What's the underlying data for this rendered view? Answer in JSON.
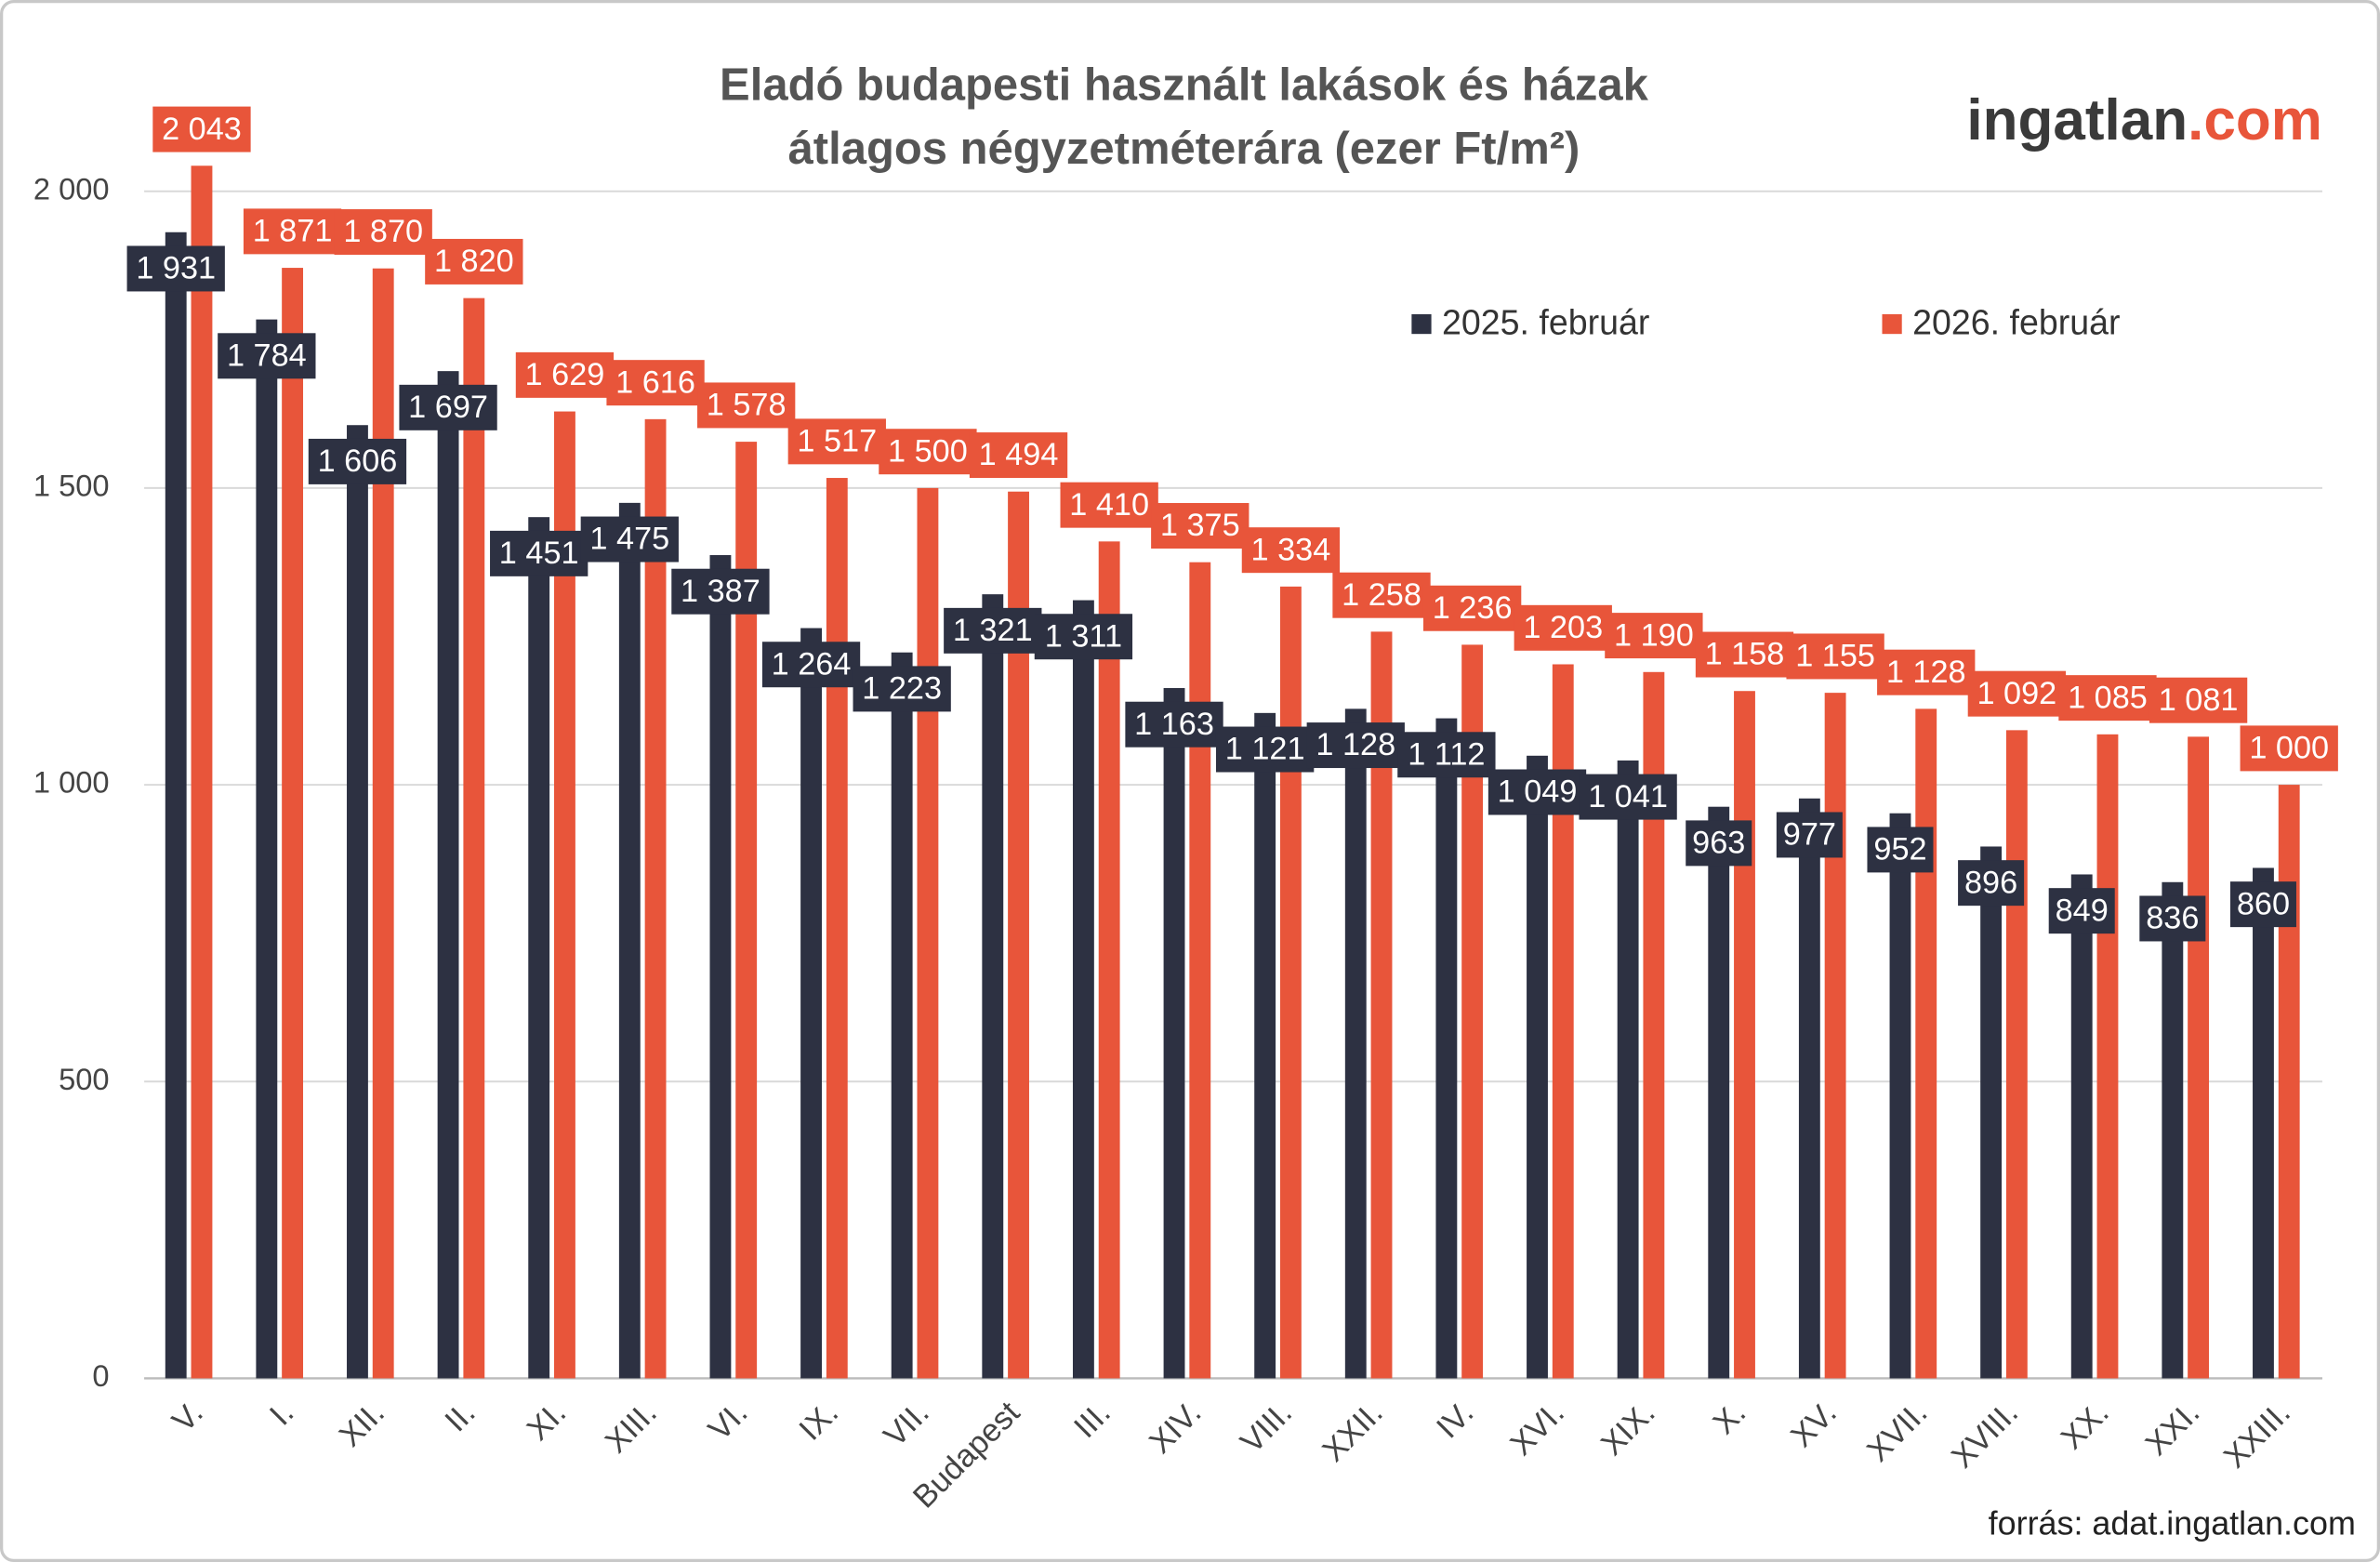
{
  "chart_data": {
    "type": "bar",
    "title": [
      "Eladó budapesti használt lakások és házak",
      "átlagos négyzetméterára (ezer Ft/m²)"
    ],
    "logo": [
      "ingatlan",
      ".com"
    ],
    "source": "forrás: adat.ingatlan.com",
    "categories": [
      "V.",
      "I.",
      "XII.",
      "II.",
      "XI.",
      "XIII.",
      "VI.",
      "IX.",
      "VII.",
      "Budapest",
      "III.",
      "XIV.",
      "VIII.",
      "XXII.",
      "IV.",
      "XVI.",
      "XIX.",
      "X.",
      "XV.",
      "XVII.",
      "XVIII.",
      "XX.",
      "XXI.",
      "XXIII."
    ],
    "series": [
      {
        "name": "2025. február",
        "color": "#2d3142",
        "values": [
          1931,
          1784,
          1606,
          1697,
          1451,
          1475,
          1387,
          1264,
          1223,
          1321,
          1311,
          1163,
          1121,
          1128,
          1112,
          1049,
          1041,
          963,
          977,
          952,
          896,
          849,
          836,
          860
        ],
        "value_labels": [
          "1 931",
          "1 784",
          "1 606",
          "1 697",
          "1 451",
          "1 475",
          "1 387",
          "1 264",
          "1 223",
          "1 321",
          "1 311",
          "1 163",
          "1 121",
          "1 128",
          "1 112",
          "1 049",
          "1 041",
          "963",
          "977",
          "952",
          "896",
          "849",
          "836",
          "860"
        ]
      },
      {
        "name": "2026. február",
        "color": "#e8553a",
        "values": [
          2043,
          1871,
          1870,
          1820,
          1629,
          1616,
          1578,
          1517,
          1500,
          1494,
          1410,
          1375,
          1334,
          1258,
          1236,
          1203,
          1190,
          1158,
          1155,
          1128,
          1092,
          1085,
          1081,
          1000
        ],
        "value_labels": [
          "2 043",
          "1 871",
          "1 870",
          "1 820",
          "1 629",
          "1 616",
          "1 578",
          "1 517",
          "1 500",
          "1 494",
          "1 410",
          "1 375",
          "1 334",
          "1 258",
          "1 236",
          "1 203",
          "1 190",
          "1 158",
          "1 155",
          "1 128",
          "1 092",
          "1 085",
          "1 081",
          "1 000"
        ]
      }
    ],
    "ylim": [
      0,
      2000
    ],
    "yticks": [
      0,
      500,
      {
        "value": 1000,
        "label": "1 000"
      },
      {
        "value": 1500,
        "label": "1 500"
      },
      {
        "value": 2000,
        "label": "2 000"
      }
    ],
    "grid": true
  }
}
